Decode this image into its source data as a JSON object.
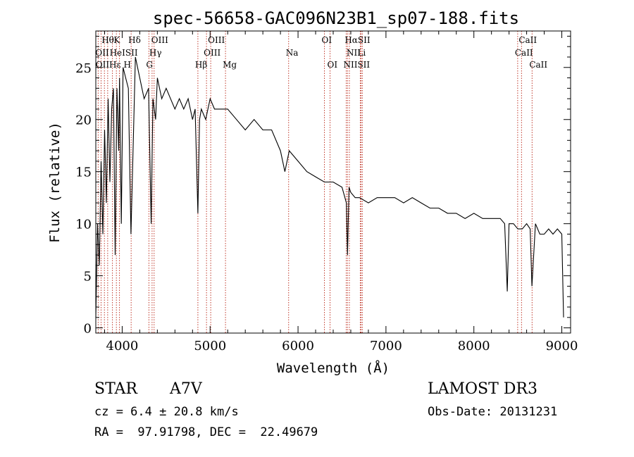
{
  "chart_data": {
    "type": "line",
    "title": "spec-56658-GAC096N23B1_sp07-188.fits",
    "xlabel": "Wavelength (Å)",
    "ylabel": "Flux (relative)",
    "xlim": [
      3700,
      9100
    ],
    "ylim": [
      -0.5,
      28.5
    ],
    "xticks": [
      4000,
      5000,
      6000,
      7000,
      8000,
      9000
    ],
    "yticks": [
      0,
      5,
      10,
      15,
      20,
      25
    ],
    "series": [
      {
        "name": "flux",
        "x": [
          3700,
          3720,
          3740,
          3760,
          3780,
          3800,
          3820,
          3840,
          3860,
          3880,
          3900,
          3920,
          3940,
          3960,
          3970,
          3990,
          4010,
          4040,
          4070,
          4100,
          4150,
          4200,
          4250,
          4300,
          4330,
          4350,
          4380,
          4400,
          4450,
          4500,
          4550,
          4600,
          4650,
          4700,
          4750,
          4800,
          4830,
          4861,
          4880,
          4900,
          4950,
          5000,
          5050,
          5100,
          5150,
          5200,
          5300,
          5400,
          5500,
          5600,
          5700,
          5800,
          5850,
          5900,
          6000,
          6100,
          6200,
          6300,
          6400,
          6500,
          6550,
          6563,
          6580,
          6600,
          6650,
          6700,
          6800,
          6900,
          7000,
          7100,
          7200,
          7300,
          7400,
          7500,
          7600,
          7700,
          7800,
          7900,
          8000,
          8100,
          8200,
          8300,
          8350,
          8380,
          8400,
          8450,
          8500,
          8550,
          8600,
          8640,
          8660,
          8700,
          8750,
          8800,
          8850,
          8900,
          8950,
          9000,
          9020
        ],
        "y": [
          1,
          10,
          6,
          16,
          9,
          19,
          12,
          22,
          14,
          21,
          23,
          7,
          23,
          17,
          24,
          10,
          25,
          24,
          23,
          9,
          26,
          24,
          22,
          23,
          10,
          22,
          20,
          24,
          22,
          23,
          22,
          21,
          22,
          21,
          22,
          20,
          21,
          11,
          20,
          21,
          20,
          22,
          21,
          21,
          21,
          21,
          20,
          19,
          20,
          19,
          19,
          17,
          15,
          17,
          16,
          15,
          14.5,
          14,
          14,
          13.5,
          12,
          7,
          13.5,
          13,
          12.5,
          12.5,
          12,
          12.5,
          12.5,
          12.5,
          12,
          12.5,
          12,
          11.5,
          11.5,
          11,
          11,
          10.5,
          11,
          10.5,
          10.5,
          10.5,
          10,
          3.5,
          10,
          10,
          9.5,
          9.5,
          10,
          9.5,
          4,
          10,
          9,
          9,
          9.5,
          9,
          9.5,
          9,
          1
        ]
      }
    ],
    "lines_top": [
      {
        "label": "Hθ",
        "x": 3798
      },
      {
        "label": "K",
        "x": 3934
      },
      {
        "label": "Hδ",
        "x": 4102
      },
      {
        "label": "OIII",
        "x": 4363
      },
      {
        "label": "OIII",
        "x": 5007
      },
      {
        "label": "OI",
        "x": 6300
      },
      {
        "label": "HαSII",
        "x": 6563
      },
      {
        "label": "CaII",
        "x": 8542
      }
    ],
    "lines_mid": [
      {
        "label": "OII",
        "x": 3727
      },
      {
        "label": "HeISII",
        "x": 3889
      },
      {
        "label": "Hγ",
        "x": 4340
      },
      {
        "label": "OIII",
        "x": 4959
      },
      {
        "label": "Na",
        "x": 5893
      },
      {
        "label": "NII",
        "x": 6584
      },
      {
        "label": "Li",
        "x": 6708
      },
      {
        "label": "CaII",
        "x": 8498
      }
    ],
    "lines_low": [
      {
        "label": "OIIHε H",
        "x": 3730
      },
      {
        "label": "G",
        "x": 4304
      },
      {
        "label": "Hβ",
        "x": 4861
      },
      {
        "label": "Mg",
        "x": 5175
      },
      {
        "label": "OI",
        "x": 6364
      },
      {
        "label": "NIISII",
        "x": 6548
      },
      {
        "label": "CaII",
        "x": 8662
      }
    ],
    "line_marks": [
      3727,
      3760,
      3798,
      3835,
      3889,
      3934,
      3969,
      4102,
      4304,
      4340,
      4363,
      4861,
      4959,
      5007,
      5175,
      5893,
      6300,
      6364,
      6548,
      6563,
      6584,
      6708,
      6717,
      6731,
      8498,
      8542,
      8662
    ]
  },
  "info": {
    "object_type": "STAR",
    "spectral_class": "A7V",
    "survey": "LAMOST DR3",
    "cz": "cz = 6.4 ± 20.8 km/s",
    "obs_date": "Obs-Date: 20131231",
    "coords": "RA =  97.91798, DEC =  22.49679"
  }
}
